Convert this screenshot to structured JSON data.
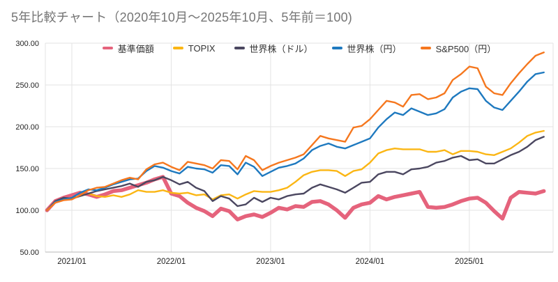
{
  "title": "5年比較チャート（2020年10月～2025年10月、5年前＝100)",
  "chart_data": {
    "type": "line",
    "title": "5年比較チャート（2020年10月～2025年10月、5年前＝100)",
    "x_domain": [
      "2020/10",
      "2025/10"
    ],
    "months_per_point": 1,
    "x_tick_labels": [
      "2021/01",
      "2022/01",
      "2023/01",
      "2024/01",
      "2025/01"
    ],
    "x_tick_month_offsets": [
      3,
      15,
      27,
      39,
      51
    ],
    "y_ticks": [
      50,
      100,
      150,
      200,
      250,
      300
    ],
    "y_tick_labels": [
      "50.00",
      "100.00",
      "150.00",
      "200.00",
      "250.00",
      "300.00"
    ],
    "ylim": [
      50,
      300
    ],
    "baseline_note": "5年前＝100",
    "grid": true,
    "grid_color": "#e3e3e3",
    "axis_color": "#b7b7b7",
    "label_color": "#1f1f1f",
    "legend_position": "top",
    "series": [
      {
        "name": "基準価額",
        "color": "#e5637c",
        "width": 5.5,
        "values": [
          100,
          111,
          115,
          118,
          121,
          119,
          116,
          119,
          123,
          124,
          127,
          130,
          133,
          137,
          140,
          120,
          117,
          109,
          103,
          99,
          93,
          102,
          99,
          89,
          93,
          95,
          92,
          97,
          103,
          101,
          105,
          104,
          110,
          111,
          107,
          100,
          91,
          103,
          107,
          109,
          117,
          113,
          116,
          118,
          120,
          122,
          104,
          103,
          104,
          107,
          111,
          114,
          115,
          109,
          99,
          90,
          115,
          122,
          121,
          120,
          123
        ]
      },
      {
        "name": "TOPIX",
        "color": "#fbb614",
        "width": 2.4,
        "values": [
          100,
          110,
          113,
          114,
          117,
          120,
          117,
          116,
          118,
          116,
          119,
          124,
          122,
          122,
          124,
          121,
          120,
          121,
          118,
          119,
          113,
          118,
          119,
          114,
          119,
          123,
          122,
          122,
          124,
          127,
          134,
          142,
          146,
          148,
          148,
          147,
          141,
          147,
          149,
          157,
          168,
          172,
          174,
          173,
          173,
          173,
          170,
          170,
          172,
          167,
          171,
          171,
          170,
          167,
          166,
          170,
          174,
          181,
          189,
          193,
          195
        ]
      },
      {
        "name": "世界株（ドル）",
        "color": "#4b4760",
        "width": 2.4,
        "values": [
          100,
          111,
          115,
          114,
          117,
          120,
          123,
          125,
          127,
          129,
          132,
          128,
          134,
          136,
          140,
          136,
          131,
          134,
          127,
          123,
          111,
          117,
          114,
          105,
          107,
          115,
          110,
          115,
          113,
          117,
          119,
          120,
          127,
          131,
          128,
          125,
          121,
          127,
          133,
          134,
          143,
          146,
          146,
          143,
          149,
          150,
          152,
          157,
          159,
          163,
          165,
          160,
          161,
          156,
          156,
          161,
          166,
          170,
          176,
          184,
          188
        ]
      },
      {
        "name": "世界株（円）",
        "color": "#1e79bf",
        "width": 2.4,
        "values": [
          100,
          110,
          113,
          115,
          121,
          125,
          124,
          127,
          131,
          134,
          137,
          138,
          147,
          153,
          151,
          147,
          144,
          152,
          150,
          149,
          145,
          154,
          153,
          143,
          157,
          152,
          141,
          146,
          151,
          153,
          156,
          162,
          172,
          177,
          180,
          176,
          174,
          178,
          182,
          186,
          199,
          209,
          217,
          214,
          222,
          218,
          214,
          216,
          221,
          235,
          242,
          246,
          245,
          231,
          223,
          220,
          231,
          242,
          254,
          263,
          265
        ]
      },
      {
        "name": "S&P500（円）",
        "color": "#f5771e",
        "width": 2.4,
        "values": [
          100,
          109,
          112,
          113,
          118,
          124,
          127,
          128,
          132,
          136,
          139,
          137,
          149,
          155,
          157,
          152,
          148,
          158,
          156,
          154,
          150,
          160,
          159,
          149,
          165,
          160,
          148,
          153,
          157,
          160,
          163,
          167,
          178,
          189,
          186,
          184,
          182,
          199,
          201,
          209,
          220,
          231,
          229,
          224,
          238,
          239,
          233,
          235,
          240,
          256,
          263,
          272,
          270,
          248,
          240,
          238,
          252,
          264,
          275,
          285,
          289
        ]
      }
    ]
  }
}
